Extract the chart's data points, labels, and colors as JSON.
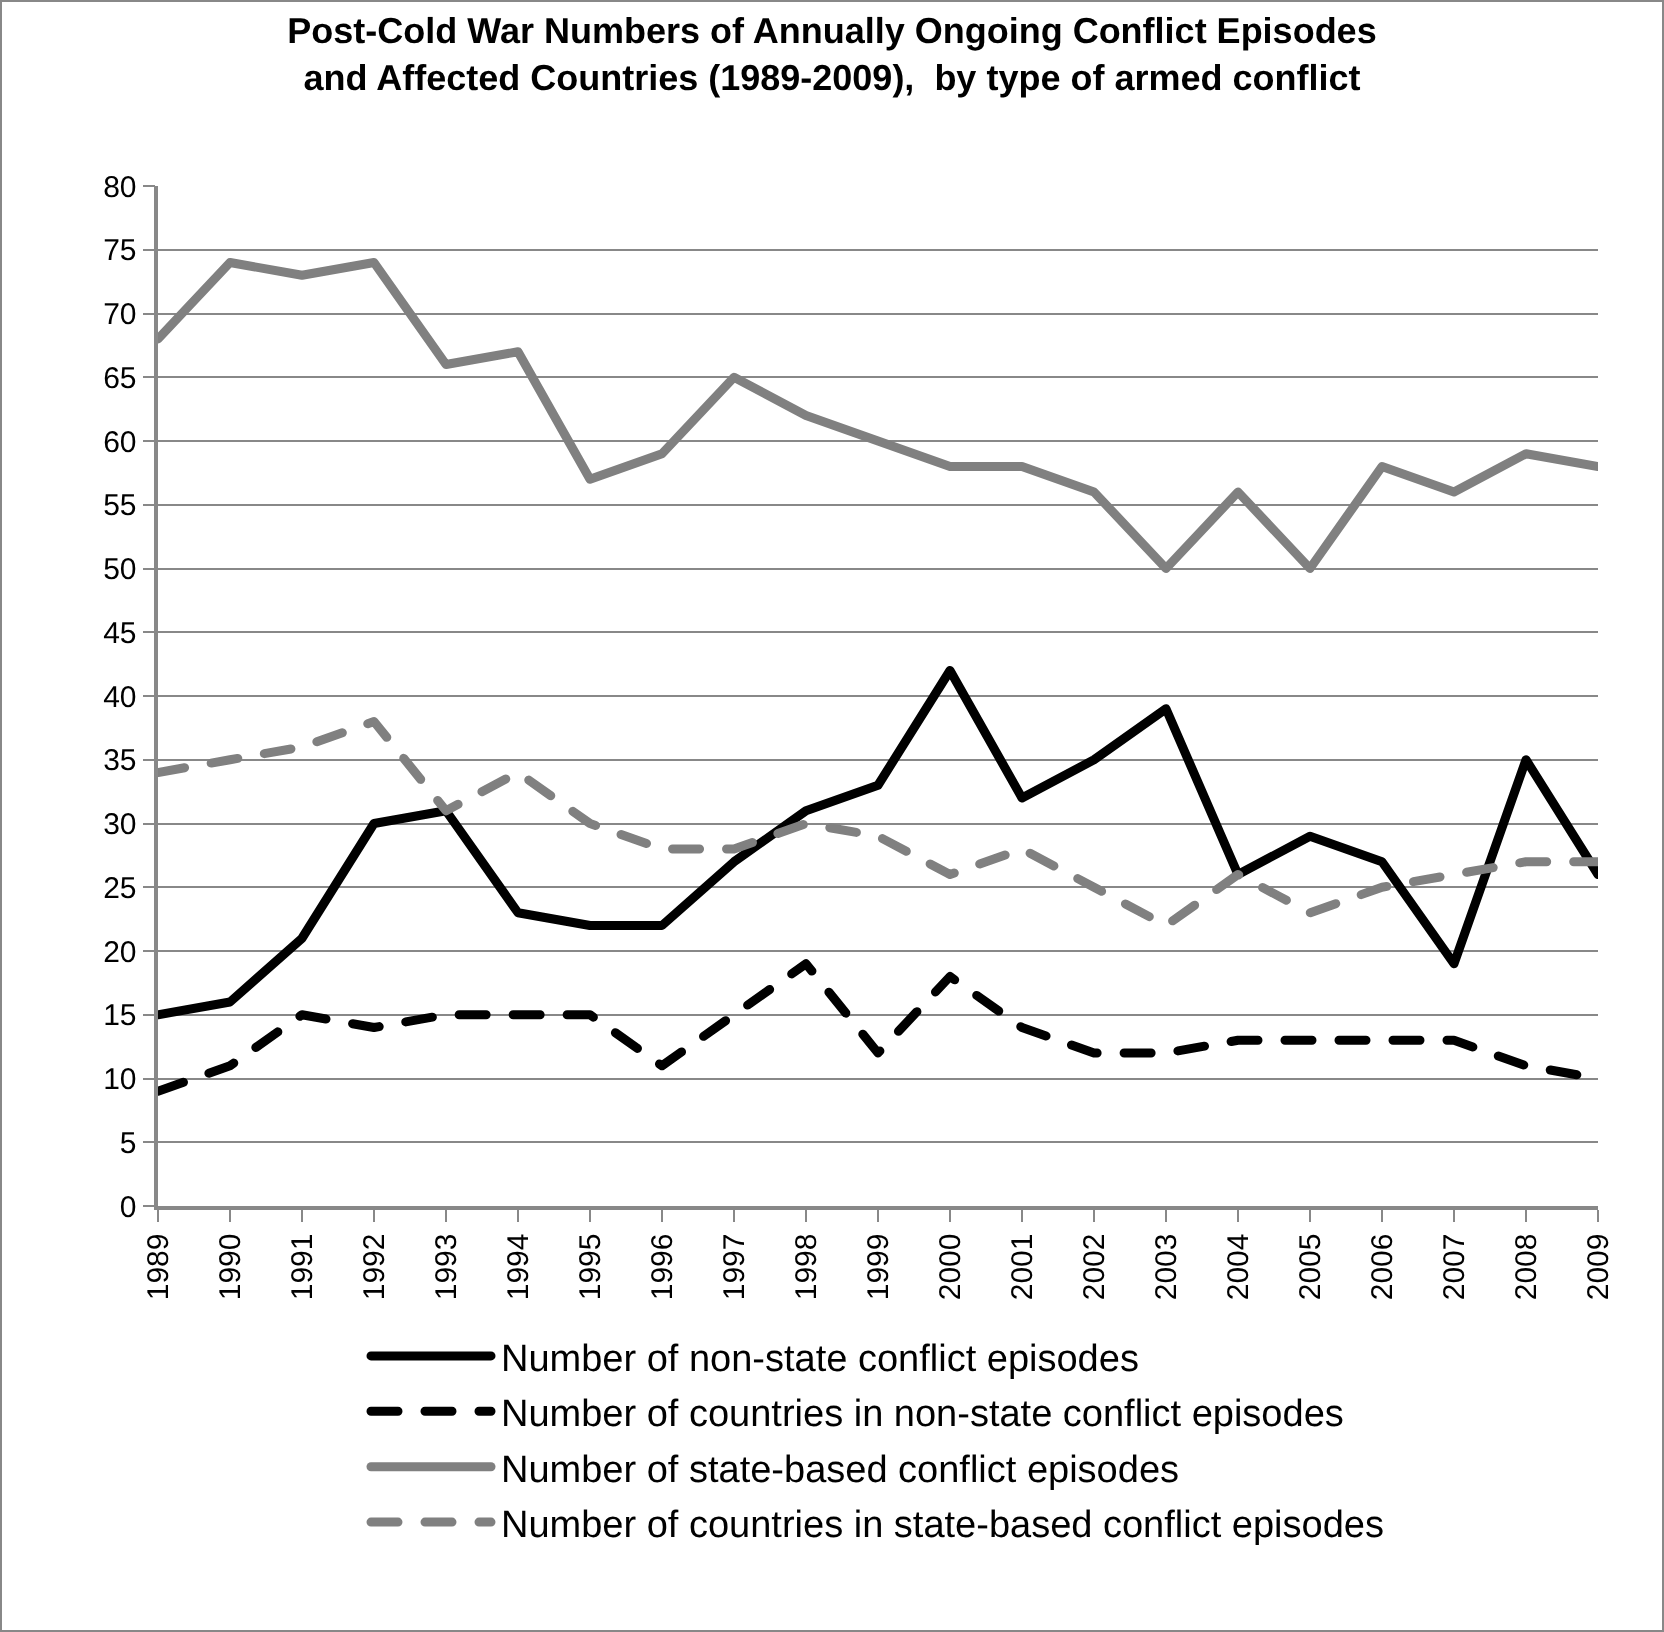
{
  "chart_data": {
    "type": "line",
    "title": "Post-Cold War Numbers of Annually Ongoing Conflict Episodes\nand Affected Countries (1989-2009),  by type of armed conflict",
    "categories": [
      "1989",
      "1990",
      "1991",
      "1992",
      "1993",
      "1994",
      "1995",
      "1996",
      "1997",
      "1998",
      "1999",
      "2000",
      "2001",
      "2002",
      "2003",
      "2004",
      "2005",
      "2006",
      "2007",
      "2008",
      "2009"
    ],
    "series": [
      {
        "name": "Number of non-state conflict episodes",
        "color": "#000000",
        "line_style": "solid",
        "values": [
          15,
          16,
          21,
          30,
          31,
          23,
          22,
          22,
          27,
          31,
          33,
          42,
          32,
          35,
          39,
          26,
          29,
          27,
          19,
          35,
          26
        ]
      },
      {
        "name": "Number of countries in non-state conflict episodes",
        "color": "#000000",
        "line_style": "dashed",
        "values": [
          9,
          11,
          15,
          14,
          15,
          15,
          15,
          11,
          15,
          19,
          12,
          18,
          14,
          12,
          12,
          13,
          13,
          13,
          13,
          11,
          10
        ]
      },
      {
        "name": "Number of state-based conflict episodes",
        "color": "#808080",
        "line_style": "solid",
        "values": [
          68,
          74,
          73,
          74,
          66,
          67,
          57,
          59,
          65,
          62,
          60,
          58,
          58,
          56,
          50,
          56,
          50,
          58,
          56,
          59,
          58
        ]
      },
      {
        "name": "Number of countries in state-based conflict episodes",
        "color": "#808080",
        "line_style": "dashed",
        "values": [
          34,
          35,
          36,
          38,
          31,
          34,
          30,
          28,
          28,
          30,
          29,
          26,
          28,
          25,
          22,
          26,
          23,
          25,
          26,
          27,
          27
        ]
      }
    ],
    "ylim": [
      0,
      80
    ],
    "yticks": [
      0,
      5,
      10,
      15,
      20,
      25,
      30,
      35,
      40,
      45,
      50,
      55,
      60,
      65,
      70,
      75,
      80
    ],
    "grid": "y",
    "legend": "bottom",
    "marker": "none"
  }
}
